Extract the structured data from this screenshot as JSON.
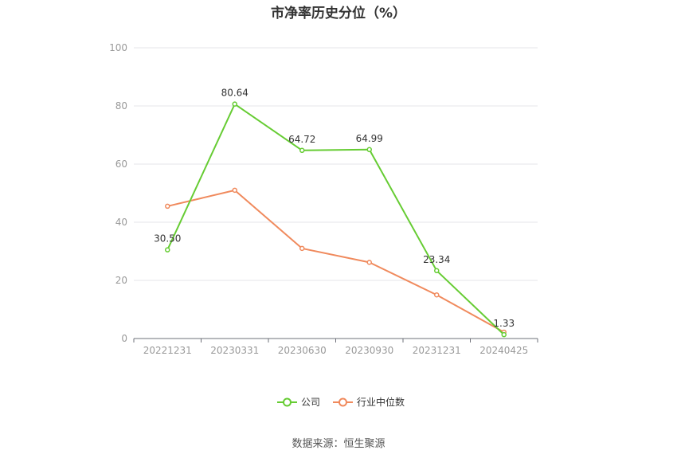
{
  "chart_data": {
    "type": "line",
    "title": "市净率历史分位（%）",
    "categories": [
      "20221231",
      "20230331",
      "20230630",
      "20230930",
      "20231231",
      "20240425"
    ],
    "series": [
      {
        "name": "公司",
        "values": [
          30.5,
          80.64,
          64.72,
          64.99,
          23.34,
          1.33
        ],
        "color": "#66cc33",
        "labels": [
          "30.50",
          "80.64",
          "64.72",
          "64.99",
          "23.34",
          "1.33"
        ]
      },
      {
        "name": "行业中位数",
        "values": [
          45.5,
          51.0,
          31.0,
          26.2,
          15.0,
          2.2
        ],
        "color": "#f08a5d"
      }
    ],
    "yticks": [
      "0",
      "20",
      "40",
      "60",
      "80",
      "100"
    ],
    "ylim": [
      0,
      100
    ],
    "grid": true,
    "legend": "bottom-center",
    "source": "数据来源：恒生聚源"
  }
}
